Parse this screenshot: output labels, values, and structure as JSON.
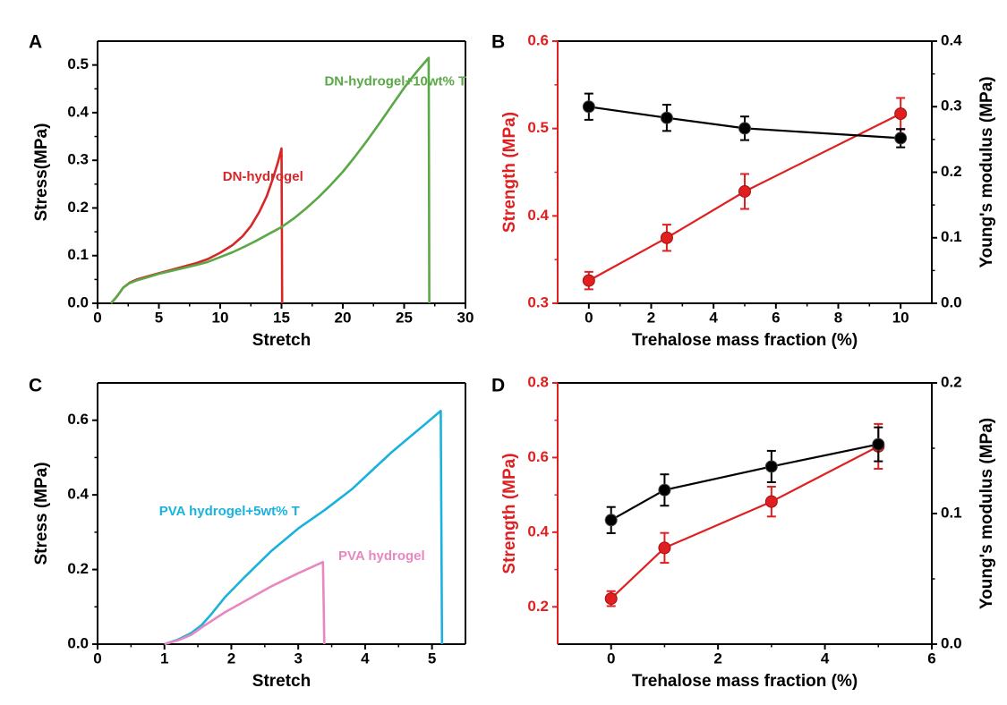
{
  "panels": [
    {
      "letter": "A",
      "chart_data": {
        "type": "line",
        "xlabel": "Stretch",
        "ylabel": "Stress(MPa)",
        "xlim": [
          0,
          30
        ],
        "ylim": [
          0,
          0.55
        ],
        "xticks": [
          0,
          5,
          10,
          15,
          20,
          25,
          30
        ],
        "xtick_labels": [
          "0",
          "5",
          "10",
          "15",
          "20",
          "25",
          "30"
        ],
        "yticks": [
          0,
          0.1,
          0.2,
          0.3,
          0.4,
          0.5
        ],
        "ytick_labels": [
          "0.0",
          "0.1",
          "0.2",
          "0.3",
          "0.4",
          "0.5"
        ],
        "series": [
          {
            "name": "DN-hydrogel",
            "color": "#d62728",
            "x": [
              1.1,
              1.6,
              2.1,
              2.6,
              3.2,
              4,
              5,
              6,
              7,
              8,
              9,
              10,
              11,
              11.8,
              12.5,
              13.2,
              13.8,
              14.3,
              14.7,
              15.0,
              15.03,
              15.05
            ],
            "y": [
              0,
              0.015,
              0.033,
              0.043,
              0.05,
              0.056,
              0.063,
              0.07,
              0.077,
              0.084,
              0.093,
              0.106,
              0.122,
              0.14,
              0.162,
              0.192,
              0.225,
              0.262,
              0.295,
              0.325,
              0.16,
              0.0
            ]
          },
          {
            "name": "DN-hydrogel+10wt% T",
            "color": "#5aa846",
            "x": [
              1.1,
              1.6,
              2.1,
              2.6,
              3.2,
              4,
              5,
              6,
              7,
              8,
              9,
              10,
              11,
              12,
              13,
              14,
              15,
              16,
              17,
              18,
              19,
              20,
              21,
              22,
              23,
              24,
              25,
              26,
              26.6,
              27.0,
              27.03,
              27.05
            ],
            "y": [
              0,
              0.015,
              0.033,
              0.042,
              0.048,
              0.054,
              0.062,
              0.068,
              0.074,
              0.08,
              0.087,
              0.097,
              0.107,
              0.119,
              0.132,
              0.146,
              0.16,
              0.178,
              0.199,
              0.222,
              0.248,
              0.276,
              0.308,
              0.342,
              0.378,
              0.415,
              0.452,
              0.485,
              0.503,
              0.515,
              0.26,
              0.0
            ]
          }
        ],
        "annotations": [
          {
            "text": "DN-hydrogel",
            "color": "#d62728",
            "x": 10.2,
            "y": 0.265
          },
          {
            "text": "DN-hydrogel+10wt% T",
            "color": "#5aa846",
            "x": 18.5,
            "y": 0.465
          }
        ]
      }
    },
    {
      "letter": "B",
      "chart_data": {
        "type": "line",
        "xlabel": "Trehalose mass fraction (%)",
        "ylabel": "Strength (MPa)",
        "ylabel_right": "Young's modulus (MPa)",
        "xlim": [
          -1,
          11
        ],
        "ylim": [
          0.3,
          0.6
        ],
        "ylim_right": [
          0,
          0.4
        ],
        "xticks": [
          0,
          2,
          4,
          6,
          8,
          10
        ],
        "xtick_labels": [
          "0",
          "2",
          "4",
          "6",
          "8",
          "10"
        ],
        "yticks": [
          0.3,
          0.4,
          0.5,
          0.6
        ],
        "ytick_labels": [
          "0.3",
          "0.4",
          "0.5",
          "0.6"
        ],
        "yticks_right": [
          0,
          0.1,
          0.2,
          0.3,
          0.4
        ],
        "ytick_labels_right": [
          "0.0",
          "0.1",
          "0.2",
          "0.3",
          "0.4"
        ],
        "series": [
          {
            "axis": "left",
            "color": "#e02020",
            "x": [
              0,
              2.5,
              5,
              10
            ],
            "y": [
              0.326,
              0.375,
              0.428,
              0.517
            ],
            "err": [
              0.01,
              0.015,
              0.02,
              0.018
            ]
          },
          {
            "axis": "right",
            "color": "#000000",
            "x": [
              0,
              2.5,
              5,
              10
            ],
            "y": [
              0.3,
              0.283,
              0.267,
              0.252
            ],
            "err": [
              0.02,
              0.02,
              0.018,
              0.014
            ]
          }
        ]
      }
    },
    {
      "letter": "C",
      "chart_data": {
        "type": "line",
        "xlabel": "Stretch",
        "ylabel": "Stress (MPa)",
        "xlim": [
          0,
          5.5
        ],
        "ylim": [
          0,
          0.7
        ],
        "xticks": [
          0,
          1,
          2,
          3,
          4,
          5
        ],
        "xtick_labels": [
          "0",
          "1",
          "2",
          "3",
          "4",
          "5"
        ],
        "yticks": [
          0,
          0.2,
          0.4,
          0.6
        ],
        "ytick_labels": [
          "0.0",
          "0.2",
          "0.4",
          "0.6"
        ],
        "series": [
          {
            "name": "PVA hydrogel+5wt% T",
            "color": "#1ab2dd",
            "x": [
              1.0,
              1.2,
              1.4,
              1.55,
              1.7,
              1.9,
              2.2,
              2.6,
              3.0,
              3.4,
              3.8,
              4.1,
              4.4,
              4.7,
              4.9,
              5.13,
              5.14,
              5.15
            ],
            "y": [
              0,
              0.012,
              0.03,
              0.05,
              0.08,
              0.125,
              0.18,
              0.25,
              0.31,
              0.36,
              0.415,
              0.465,
              0.515,
              0.56,
              0.59,
              0.625,
              0.31,
              0.0
            ]
          },
          {
            "name": "PVA hydrogel",
            "color": "#e887c0",
            "x": [
              1.0,
              1.2,
              1.4,
              1.6,
              1.9,
              2.2,
              2.6,
              3.0,
              3.37,
              3.38,
              3.39
            ],
            "y": [
              0,
              0.01,
              0.025,
              0.05,
              0.085,
              0.115,
              0.155,
              0.19,
              0.22,
              0.11,
              0.0
            ]
          }
        ],
        "annotations": [
          {
            "text": "PVA hydrogel+5wt% T",
            "color": "#1ab2dd",
            "x": 0.92,
            "y": 0.355
          },
          {
            "text": "PVA hydrogel",
            "color": "#e887c0",
            "x": 3.6,
            "y": 0.235
          }
        ]
      }
    },
    {
      "letter": "D",
      "chart_data": {
        "type": "line",
        "xlabel": "Trehalose mass fraction (%)",
        "ylabel": "Strength (MPa)",
        "ylabel_right": "Young's modulus (MPa)",
        "xlim": [
          -1,
          6
        ],
        "ylim": [
          0.1,
          0.8
        ],
        "ylim_right": [
          0,
          0.2
        ],
        "xticks": [
          0,
          2,
          4,
          6
        ],
        "xtick_labels": [
          "0",
          "2",
          "4",
          "6"
        ],
        "yticks": [
          0.2,
          0.4,
          0.6,
          0.8
        ],
        "ytick_labels": [
          "0.2",
          "0.4",
          "0.6",
          "0.8"
        ],
        "yticks_right": [
          0,
          0.1,
          0.2
        ],
        "ytick_labels_right": [
          "0.0",
          "0.1",
          "0.2"
        ],
        "series": [
          {
            "axis": "left",
            "color": "#e02020",
            "x": [
              0,
              1,
              3,
              5
            ],
            "y": [
              0.222,
              0.358,
              0.482,
              0.63
            ],
            "err": [
              0.02,
              0.04,
              0.04,
              0.06
            ]
          },
          {
            "axis": "right",
            "color": "#000000",
            "x": [
              0,
              1,
              3,
              5
            ],
            "y": [
              0.095,
              0.118,
              0.136,
              0.153
            ],
            "err": [
              0.01,
              0.012,
              0.012,
              0.013
            ]
          }
        ]
      }
    }
  ]
}
